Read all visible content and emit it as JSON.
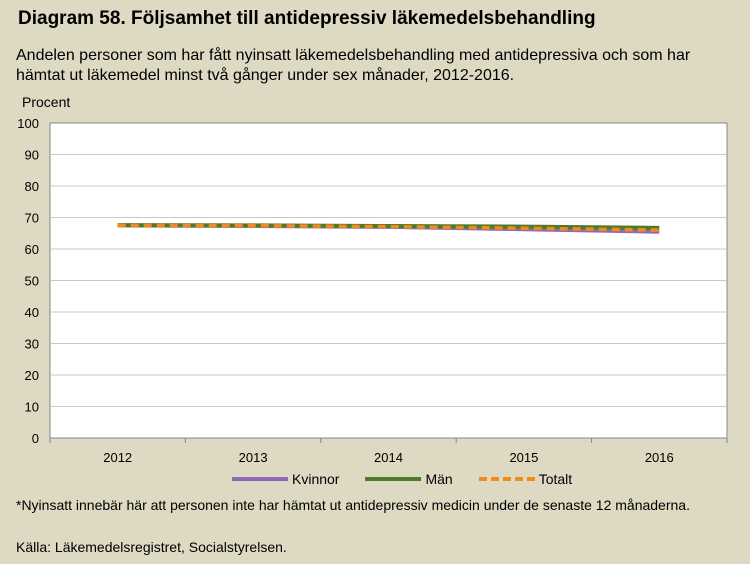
{
  "header": {
    "title": "Diagram 58. Följsamhet till antidepressiv läkemedelsbehandling",
    "subtitle": "Andelen personer som har fått nyinsatt läkemedelsbehandling med antidepressiva och som har hämtat ut läkemedel minst två gånger under sex månader, 2012-2016."
  },
  "footer": {
    "footnote": "*Nyinsatt innebär här att personen inte har hämtat ut antidepressiv medicin under de senaste 12 månaderna.",
    "source": "Källa: Läkemedelsregistret, Socialstyrelsen."
  },
  "chart_data": {
    "type": "line",
    "ylabel": "Procent",
    "xlabel": "",
    "categories": [
      "2012",
      "2013",
      "2014",
      "2015",
      "2016"
    ],
    "ylim": [
      0,
      100
    ],
    "yticks": [
      0,
      10,
      20,
      30,
      40,
      50,
      60,
      70,
      80,
      90,
      100
    ],
    "grid": true,
    "legend_position": "bottom",
    "series": [
      {
        "name": "Kvinnor",
        "values": [
          67.5,
          67.3,
          67.0,
          66.3,
          65.5
        ],
        "color": "#8e6ab1",
        "style": "solid"
      },
      {
        "name": "Män",
        "values": [
          67.6,
          67.5,
          67.3,
          67.1,
          66.7
        ],
        "color": "#4f7a28",
        "style": "solid"
      },
      {
        "name": "Totalt",
        "values": [
          67.5,
          67.4,
          67.1,
          66.6,
          66.0
        ],
        "color": "#f08c1c",
        "style": "dashed"
      }
    ]
  }
}
